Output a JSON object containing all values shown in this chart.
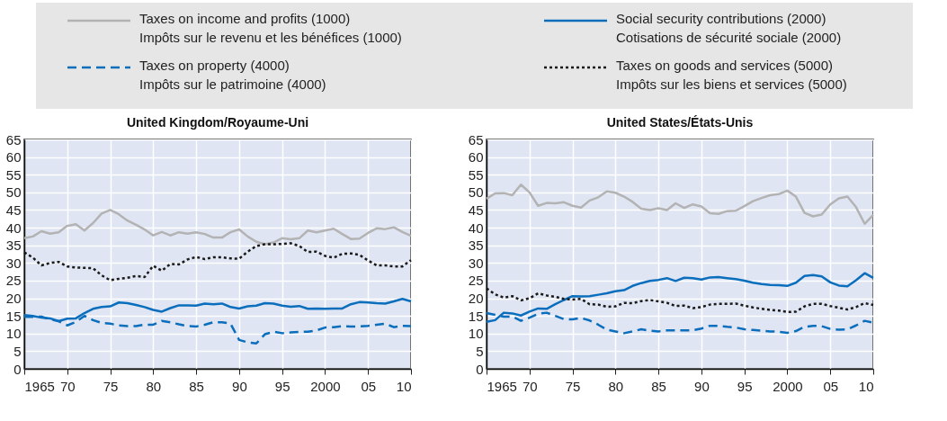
{
  "chart_data": [
    {
      "type": "line",
      "title": "United Kingdom/Royaume-Uni",
      "legend": "top",
      "grid": true,
      "marker": "none",
      "x": [
        1965,
        1966,
        1967,
        1968,
        1969,
        1970,
        1971,
        1972,
        1973,
        1974,
        1975,
        1976,
        1977,
        1978,
        1979,
        1980,
        1981,
        1982,
        1983,
        1984,
        1985,
        1986,
        1987,
        1988,
        1989,
        1990,
        1991,
        1992,
        1993,
        1994,
        1995,
        1996,
        1997,
        1998,
        1999,
        2000,
        2001,
        2002,
        2003,
        2004,
        2005,
        2006,
        2007,
        2008,
        2009,
        2010
      ],
      "xlim": [
        1965,
        2010
      ],
      "xticks": [
        1965,
        {
          "value": 1970,
          "label": "70"
        },
        {
          "value": 1975,
          "label": "75"
        },
        {
          "value": 1980,
          "label": "80"
        },
        {
          "value": 1985,
          "label": "85"
        },
        {
          "value": 1990,
          "label": "90"
        },
        {
          "value": 1995,
          "label": "95"
        },
        2000,
        {
          "value": 2005,
          "label": "05"
        },
        {
          "value": 2010,
          "label": "10"
        }
      ],
      "ylim": [
        0,
        65
      ],
      "yticks": [
        0,
        5,
        10,
        15,
        20,
        25,
        30,
        35,
        40,
        45,
        50,
        55,
        60,
        65
      ],
      "series": [
        {
          "name": "Taxes on income and profits (1000)\nImpôts sur le revenu et les bénéfices (1000)",
          "color": "#b3b3b3",
          "line_style": "solid",
          "values": [
            37,
            37.5,
            39,
            38.3,
            38.7,
            40.5,
            41,
            39.2,
            41.3,
            44,
            45,
            43.8,
            42,
            40.8,
            39.5,
            37.8,
            38.8,
            37.8,
            38.7,
            38.3,
            38.7,
            38.2,
            37.2,
            37.2,
            38.7,
            39.5,
            37.5,
            36,
            35.3,
            35.8,
            37,
            36.7,
            37,
            39.2,
            38.7,
            39.2,
            39.7,
            38.2,
            36.8,
            36.9,
            38.5,
            39.8,
            39.6,
            40.1,
            38.8,
            37.7
          ]
        },
        {
          "name": "Social security contributions (2000)\nCotisations de sécurité sociale (2000)",
          "color": "#0a6ebd",
          "line_style": "solid",
          "values": [
            15.2,
            15,
            14.5,
            14.3,
            13.5,
            14.2,
            14.3,
            15.8,
            17,
            17.5,
            17.7,
            18.8,
            18.6,
            18.1,
            17.5,
            16.7,
            16.2,
            17.2,
            18,
            18,
            17.9,
            18.5,
            18.3,
            18.5,
            17.5,
            17.1,
            17.7,
            17.9,
            18.6,
            18.5,
            17.9,
            17.6,
            17.8,
            17,
            17.1,
            17,
            17.1,
            17.1,
            18.3,
            18.9,
            18.8,
            18.6,
            18.5,
            19.1,
            19.8,
            19.1
          ]
        },
        {
          "name": "Taxes on property (4000)\nImpôts sur le patrimoine (4000)",
          "color": "#0a6ebd",
          "line_style": "dashed",
          "values": [
            14.7,
            14.7,
            14.8,
            14,
            13.5,
            12.3,
            13.3,
            15,
            13.8,
            13,
            12.8,
            12.3,
            12.1,
            12.1,
            12.5,
            12.5,
            13.6,
            13.2,
            12.6,
            12.1,
            12,
            12.5,
            13.2,
            13.2,
            12.8,
            8.2,
            7.5,
            7.2,
            9.8,
            10.5,
            10.1,
            10.3,
            10.5,
            10.5,
            10.9,
            11.7,
            11.8,
            12.1,
            12,
            12,
            12.2,
            12.5,
            12.8,
            11.8,
            12.2,
            12.1
          ]
        },
        {
          "name": "Taxes on goods and services (5000)\nImpôts sur les biens et services (5000)",
          "color": "#1a1a1a",
          "line_style": "dotted",
          "values": [
            33,
            31.5,
            29.3,
            30,
            30.3,
            29,
            28.7,
            28.6,
            28.5,
            26.5,
            25.1,
            25.5,
            25.8,
            26.3,
            26,
            29.2,
            27.8,
            29.7,
            29.6,
            31,
            31.7,
            31.1,
            31.6,
            31.6,
            31.3,
            31.2,
            33.2,
            34.8,
            35.3,
            35.3,
            35.4,
            35.6,
            34.8,
            33.1,
            33.2,
            32,
            31.5,
            32.6,
            32.7,
            32.3,
            30.7,
            29.3,
            29.3,
            29,
            29,
            30.8
          ]
        }
      ]
    },
    {
      "type": "line",
      "title": "United States/États-Unis",
      "grid": true,
      "marker": "none",
      "legend": false,
      "x": [
        1965,
        1966,
        1967,
        1968,
        1969,
        1970,
        1971,
        1972,
        1973,
        1974,
        1975,
        1976,
        1977,
        1978,
        1979,
        1980,
        1981,
        1982,
        1983,
        1984,
        1985,
        1986,
        1987,
        1988,
        1989,
        1990,
        1991,
        1992,
        1993,
        1994,
        1995,
        1996,
        1997,
        1998,
        1999,
        2000,
        2001,
        2002,
        2003,
        2004,
        2005,
        2006,
        2007,
        2008,
        2009,
        2010
      ],
      "xlim": [
        1965,
        2010
      ],
      "xticks": [
        1965,
        {
          "value": 1970,
          "label": "70"
        },
        {
          "value": 1975,
          "label": "75"
        },
        {
          "value": 1980,
          "label": "80"
        },
        {
          "value": 1985,
          "label": "85"
        },
        {
          "value": 1990,
          "label": "90"
        },
        {
          "value": 1995,
          "label": "95"
        },
        2000,
        {
          "value": 2005,
          "label": "05"
        },
        {
          "value": 2010,
          "label": "10"
        }
      ],
      "ylim": [
        0,
        65
      ],
      "yticks": [
        0,
        5,
        10,
        15,
        20,
        25,
        30,
        35,
        40,
        45,
        50,
        55,
        60,
        65
      ],
      "series": [
        {
          "color": "#b3b3b3",
          "line_style": "solid",
          "values": [
            48.2,
            49.7,
            49.8,
            49.2,
            52.2,
            50,
            46.2,
            47,
            46.9,
            47.2,
            46.2,
            45.7,
            47.7,
            48.6,
            50.3,
            49.9,
            48.8,
            47.3,
            45.4,
            45,
            45.5,
            45,
            46.9,
            45.6,
            46.6,
            46,
            44.1,
            43.9,
            44.7,
            44.8,
            46.1,
            47.5,
            48.4,
            49.2,
            49.5,
            50.5,
            48.8,
            44.2,
            43.2,
            43.7,
            46.6,
            48.3,
            48.8,
            45.8,
            41.1,
            43.6
          ]
        },
        {
          "color": "#0a6ebd",
          "line_style": "solid",
          "values": [
            13.3,
            13.8,
            15.9,
            15.7,
            15.1,
            16.2,
            17.1,
            17,
            18.3,
            19.5,
            20.6,
            20.5,
            20.6,
            21,
            21.4,
            22,
            22.3,
            23.5,
            24.3,
            24.9,
            25.2,
            25.7,
            24.9,
            25.8,
            25.7,
            25.3,
            25.9,
            26,
            25.7,
            25.4,
            25,
            24.4,
            24,
            23.8,
            23.7,
            23.5,
            24.4,
            26.3,
            26.6,
            26.2,
            24.5,
            23.6,
            23.4,
            25.1,
            27.1,
            25.8
          ]
        },
        {
          "color": "#0a6ebd",
          "line_style": "dashed",
          "values": [
            15.8,
            15.3,
            14.8,
            14.8,
            13.6,
            14.5,
            15.6,
            15.9,
            15,
            14.1,
            14,
            14.4,
            13.7,
            12.5,
            11.1,
            10.6,
            10.1,
            10.6,
            11.2,
            10.8,
            10.6,
            10.9,
            10.9,
            10.9,
            10.9,
            11.4,
            12.2,
            12.2,
            11.9,
            11.7,
            11.2,
            11,
            10.8,
            10.6,
            10.5,
            10.2,
            10.7,
            11.9,
            12.2,
            12.1,
            11.3,
            11.1,
            11.2,
            12.3,
            13.6,
            13.1
          ]
        },
        {
          "color": "#1a1a1a",
          "line_style": "dotted",
          "values": [
            22.8,
            21.1,
            20.2,
            20.6,
            19.4,
            20,
            21.4,
            20.8,
            20.4,
            19.8,
            19.6,
            19.8,
            18.3,
            18.2,
            17.6,
            17.7,
            18.7,
            18.6,
            19.2,
            19.5,
            19.1,
            18.7,
            17.8,
            17.9,
            17.2,
            17.5,
            18.2,
            18.4,
            18.4,
            18.5,
            17.9,
            17.4,
            17,
            16.7,
            16.5,
            16.1,
            16.2,
            17.7,
            18.4,
            18.4,
            17.8,
            17.3,
            16.8,
            17.5,
            18.6,
            18.1
          ]
        }
      ]
    }
  ]
}
